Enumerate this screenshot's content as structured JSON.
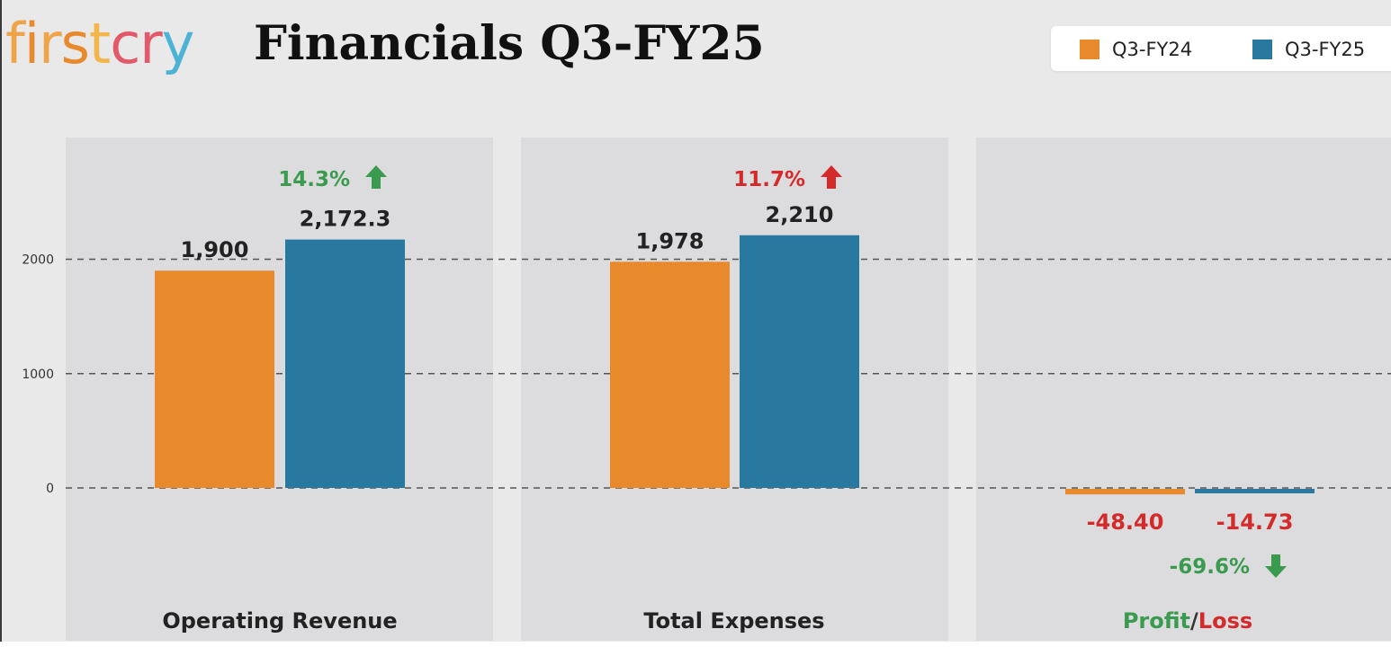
{
  "logo": {
    "text": "firstcry"
  },
  "header": {
    "title": "Financials Q3-FY25"
  },
  "legend": [
    {
      "label": "Q3-FY24",
      "color": "#e8892c"
    },
    {
      "label": "Q3-FY25",
      "color": "#2878a0"
    }
  ],
  "chart_data": {
    "type": "bar",
    "title": "Financials Q3-FY25",
    "categories": [
      "Operating Revenue",
      "Total Expenses",
      "Profit/Loss"
    ],
    "series": [
      {
        "name": "Q3-FY24",
        "values": [
          1900,
          1978,
          -48.4
        ],
        "labels": [
          "1,900",
          "1,978",
          "-48.40"
        ],
        "color": "#e8892c"
      },
      {
        "name": "Q3-FY25",
        "values": [
          2172.3,
          2210,
          -14.73
        ],
        "labels": [
          "2,172.3",
          "2,210",
          "-14.73"
        ],
        "color": "#2878a0"
      }
    ],
    "changes": [
      {
        "text": "14.3%",
        "direction": "up",
        "color": "#3a9a4e"
      },
      {
        "text": "11.7%",
        "direction": "up",
        "color": "#d42a2a"
      },
      {
        "text": "-69.6%",
        "direction": "down",
        "color": "#3a9a4e"
      }
    ],
    "category_label_parts": {
      "profit": "Profit",
      "slash": "/",
      "loss": "Loss"
    },
    "yticks": [
      0,
      1000,
      2000
    ],
    "ytick_labels": [
      "0",
      "1000",
      "2000"
    ],
    "ylim": [
      -500,
      3000
    ],
    "grid": true,
    "legend_position": "top-right",
    "colors": {
      "positive": "#3a9a4e",
      "negative": "#d42a2a",
      "panel": "#dcdcdf"
    }
  }
}
